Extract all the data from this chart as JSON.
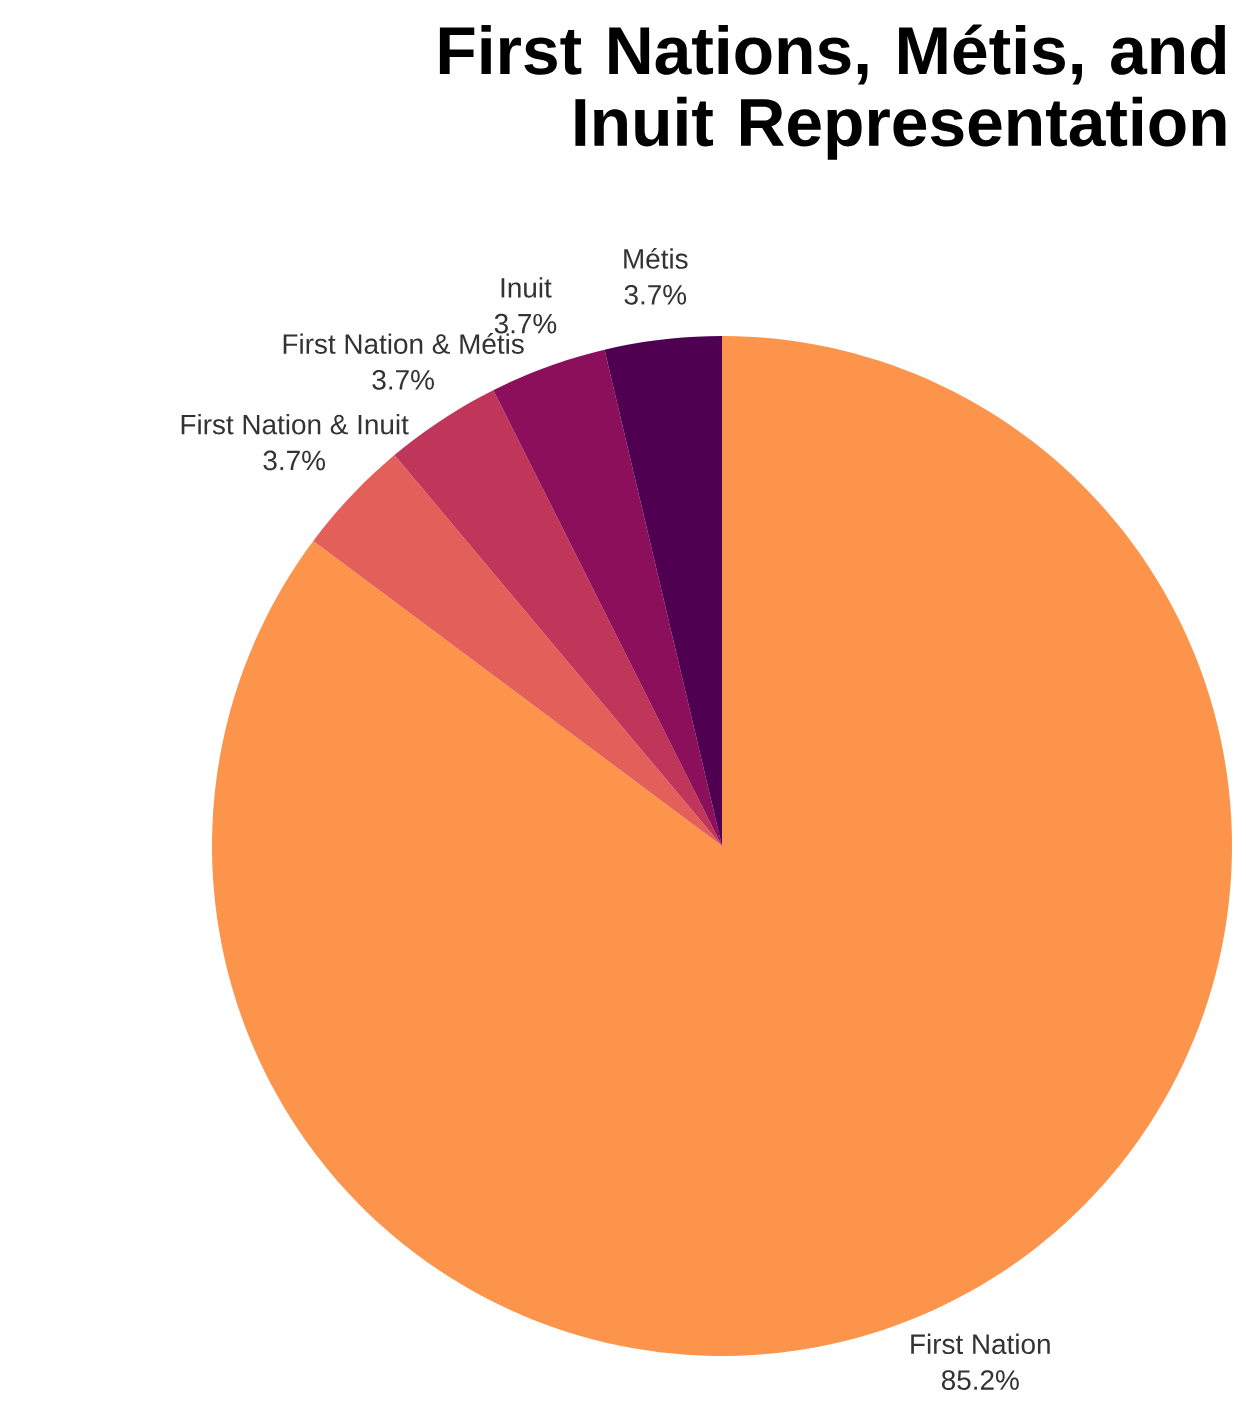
{
  "chart_data": {
    "type": "pie",
    "title": "First Nations, Métis, and Inuit Representation",
    "categories": [
      "First Nation",
      "First Nation & Inuit",
      "First Nation & Métis",
      "Inuit",
      "Métis"
    ],
    "values": [
      85.2,
      3.7,
      3.7,
      3.7,
      3.7
    ],
    "value_labels": [
      "85.2%",
      "3.7%",
      "3.7%",
      "3.7%",
      "3.7%"
    ],
    "colors": [
      "#fc944b",
      "#e3605a",
      "#c0365a",
      "#8b0f5b",
      "#4f0050"
    ]
  }
}
